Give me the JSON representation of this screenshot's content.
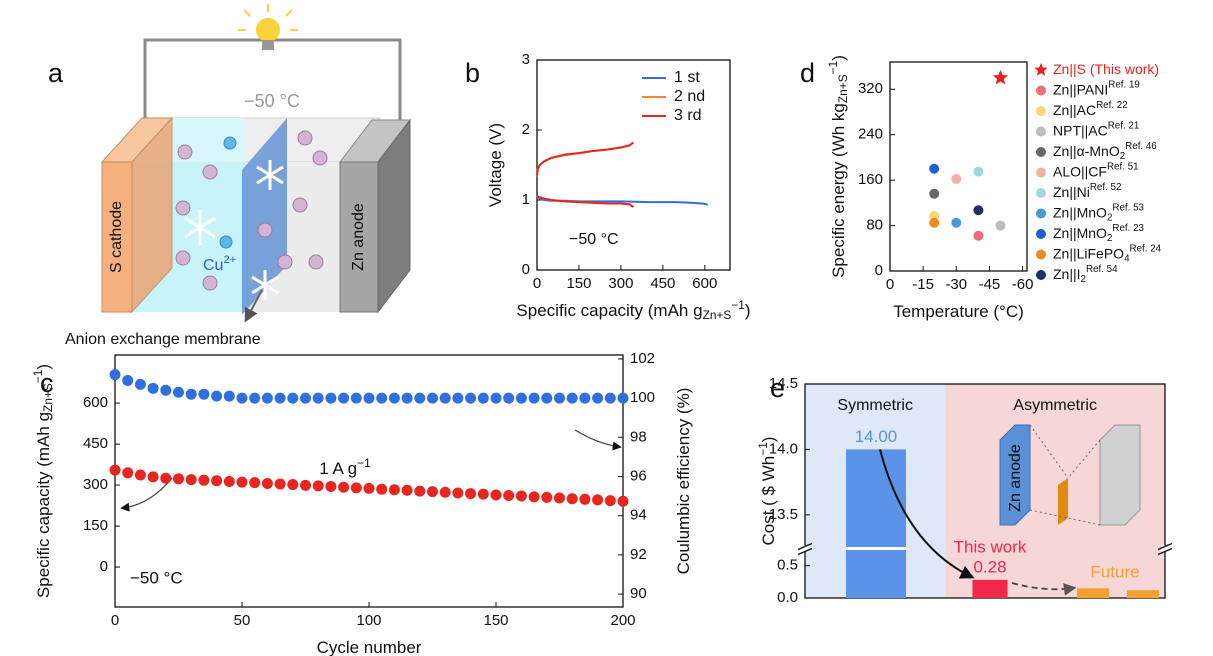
{
  "diagram": {
    "label": "a",
    "temperature": "−50 °C",
    "cathode": "S cathode",
    "anode": "Zn anode",
    "ion": [
      {
        "text": "Cu"
      },
      {
        "text": "2+",
        "pos": "sup"
      }
    ],
    "membrane": "Anion exchange membrane"
  },
  "chart_data": [
    {
      "panel_label": "b",
      "type": "line",
      "xlabel": [
        {
          "text": "Specific capacity (mAh g"
        },
        {
          "text": "Zn+S",
          "pos": "sub"
        },
        {
          "text": "−1",
          "pos": "sup"
        },
        {
          "text": ")"
        }
      ],
      "ylabel": [
        {
          "text": "Voltage (V)"
        }
      ],
      "annotation": "−50 °C",
      "xlim": [
        0,
        690
      ],
      "xticks": [
        0,
        150,
        300,
        450,
        600
      ],
      "ylim": [
        0,
        3
      ],
      "yticks": [
        0,
        1,
        2,
        3
      ],
      "legend": "upper right",
      "series": [
        {
          "name": "1 st",
          "color": "#2f6fdf",
          "x": [
            0,
            10,
            25,
            50,
            100,
            150,
            200,
            300,
            400,
            500,
            550,
            590,
            605,
            610
          ],
          "values": [
            1.06,
            1.02,
            1.0,
            0.99,
            0.99,
            0.98,
            0.98,
            0.98,
            0.97,
            0.97,
            0.96,
            0.95,
            0.94,
            0.93
          ]
        },
        {
          "name": "2 nd",
          "color": "#f28a2c",
          "x": [
            0,
            3,
            10,
            25,
            50,
            100,
            150,
            200,
            250,
            300,
            330,
            340,
            null,
            0,
            25,
            50,
            100,
            150,
            200,
            250,
            300,
            330,
            340
          ],
          "values": [
            1.34,
            1.44,
            1.5,
            1.55,
            1.6,
            1.64,
            1.67,
            1.7,
            1.72,
            1.75,
            1.78,
            1.81,
            null,
            1.05,
            1.02,
            1.0,
            0.98,
            0.97,
            0.96,
            0.95,
            0.95,
            0.94,
            0.91
          ]
        },
        {
          "name": "3 rd",
          "color": "#e8251f",
          "x": [
            0,
            3,
            10,
            25,
            50,
            100,
            150,
            200,
            250,
            300,
            330,
            345,
            null,
            0,
            25,
            50,
            100,
            150,
            200,
            250,
            300,
            330,
            345
          ],
          "values": [
            1.35,
            1.45,
            1.5,
            1.55,
            1.6,
            1.65,
            1.67,
            1.7,
            1.72,
            1.75,
            1.78,
            1.82,
            null,
            1.05,
            1.02,
            1.0,
            0.98,
            0.97,
            0.96,
            0.95,
            0.95,
            0.94,
            0.9
          ]
        }
      ]
    },
    {
      "panel_label": "c",
      "type": "scatter",
      "xlabel": [
        {
          "text": "Cycle number"
        }
      ],
      "ylabel": [
        {
          "text": "Specific capacity (mAh g"
        },
        {
          "text": "Zn+S",
          "pos": "sub"
        },
        {
          "text": "−1",
          "pos": "sup"
        },
        {
          "text": ")"
        }
      ],
      "y2label": [
        {
          "text": "Coulumbic efficiency (%)"
        }
      ],
      "rate": [
        {
          "text": "1 A g"
        },
        {
          "text": "−1",
          "pos": "sup"
        }
      ],
      "annotation": "−50 °C",
      "xlim": [
        0,
        200
      ],
      "xticks": [
        0,
        50,
        100,
        150,
        200
      ],
      "ylim": [
        -146,
        776
      ],
      "yticks": [
        0,
        150,
        300,
        450,
        600
      ],
      "y2lim": [
        89.34,
        102.2
      ],
      "y2ticks": [
        90,
        92,
        94,
        96,
        98,
        100,
        102
      ],
      "x": [
        0,
        5,
        10,
        15,
        20,
        25,
        30,
        35,
        40,
        45,
        50,
        55,
        60,
        65,
        70,
        75,
        80,
        85,
        90,
        95,
        100,
        105,
        110,
        115,
        120,
        125,
        130,
        135,
        140,
        145,
        150,
        155,
        160,
        165,
        170,
        175,
        180,
        185,
        190,
        195,
        200
      ],
      "series": [
        {
          "color": "#e8251f",
          "values": [
            355,
            345,
            337,
            330,
            325,
            323,
            320,
            318,
            316,
            313,
            311,
            309,
            306,
            304,
            302,
            299,
            297,
            295,
            292,
            290,
            288,
            285,
            283,
            281,
            278,
            276,
            274,
            271,
            269,
            267,
            264,
            262,
            260,
            257,
            255,
            253,
            250,
            248,
            246,
            243,
            241
          ]
        },
        {
          "color": "#2f6fdf",
          "axis": "y2",
          "values": [
            101.2,
            100.9,
            100.7,
            100.5,
            100.4,
            100.3,
            100.2,
            100.2,
            100.1,
            100.1,
            100,
            100,
            100,
            100,
            100,
            100,
            100,
            100,
            100,
            100,
            100,
            100,
            100,
            100,
            100,
            100,
            100,
            100,
            100,
            100,
            100,
            100,
            100,
            100,
            100,
            100,
            100,
            100,
            100,
            100,
            100
          ]
        }
      ]
    },
    {
      "panel_label": "d",
      "type": "scatter",
      "xlabel": [
        {
          "text": "Temperature (°C)"
        }
      ],
      "ylabel": [
        {
          "text": "Specific energy (Wh kg"
        },
        {
          "text": "Zn+S",
          "pos": "sub"
        },
        {
          "text": "−1",
          "pos": "sup"
        },
        {
          "text": ")"
        }
      ],
      "xlim": [
        0,
        -62
      ],
      "xticks": [
        0,
        -15,
        -30,
        -45,
        -60
      ],
      "ylim": [
        0,
        368
      ],
      "yticks": [
        0,
        80,
        160,
        240,
        320
      ],
      "legend": "right",
      "series": [
        {
          "name": [
            {
              "text": "Zn||S (This work)"
            }
          ],
          "color": "#e8221f",
          "text_color": "#e8221f",
          "marker": "star",
          "x": [
            -50
          ],
          "values": [
            340
          ]
        },
        {
          "name": [
            {
              "text": "Zn||PANI"
            },
            {
              "text": "Ref. 19",
              "pos": "sup"
            }
          ],
          "color": "#f26b7a",
          "marker": "circle",
          "x": [
            -40
          ],
          "values": [
            62
          ]
        },
        {
          "name": [
            {
              "text": "Zn||AC"
            },
            {
              "text": "Ref. 22",
              "pos": "sup"
            }
          ],
          "color": "#f7d77a",
          "marker": "circle",
          "x": [
            -20
          ],
          "values": [
            97
          ]
        },
        {
          "name": [
            {
              "text": "NPT||AC"
            },
            {
              "text": "Ref. 21",
              "pos": "sup"
            }
          ],
          "color": "#bdbdbd",
          "marker": "circle",
          "x": [
            -50
          ],
          "values": [
            80
          ]
        },
        {
          "name": [
            {
              "text": "Zn||α-MnO"
            },
            {
              "text": "2",
              "pos": "sub"
            },
            {
              "text": "Ref. 46",
              "pos": "sup"
            }
          ],
          "color": "#666666",
          "marker": "circle",
          "x": [
            -20
          ],
          "values": [
            136
          ]
        },
        {
          "name": [
            {
              "text": "ALO||CF"
            },
            {
              "text": "Ref. 51",
              "pos": "sup"
            }
          ],
          "color": "#f5b0a0",
          "marker": "circle",
          "x": [
            -30
          ],
          "values": [
            162
          ]
        },
        {
          "name": [
            {
              "text": "Zn||Ni"
            },
            {
              "text": "Ref. 52",
              "pos": "sup"
            }
          ],
          "color": "#9dd9e2",
          "marker": "circle",
          "x": [
            -40
          ],
          "values": [
            175
          ]
        },
        {
          "name": [
            {
              "text": "Zn||MnO"
            },
            {
              "text": "2",
              "pos": "sub"
            },
            {
              "text": "Ref. 53",
              "pos": "sup"
            }
          ],
          "color": "#4a9ad8",
          "marker": "circle",
          "x": [
            -30
          ],
          "values": [
            85
          ]
        },
        {
          "name": [
            {
              "text": "Zn||MnO"
            },
            {
              "text": "2",
              "pos": "sub"
            },
            {
              "text": "Ref. 23",
              "pos": "sup"
            }
          ],
          "color": "#1f5fd6",
          "marker": "circle",
          "x": [
            -20
          ],
          "values": [
            180
          ]
        },
        {
          "name": [
            {
              "text": "Zn||LiFePO"
            },
            {
              "text": "4",
              "pos": "sub"
            },
            {
              "text": "Ref. 24",
              "pos": "sup"
            }
          ],
          "color": "#f08a1c",
          "marker": "circle",
          "x": [
            -20
          ],
          "values": [
            85
          ]
        },
        {
          "name": [
            {
              "text": "Zn||I"
            },
            {
              "text": "2",
              "pos": "sub"
            },
            {
              "text": "Ref. 54",
              "pos": "sup"
            }
          ],
          "color": "#1e2f66",
          "marker": "circle",
          "x": [
            -40
          ],
          "values": [
            107
          ]
        }
      ]
    },
    {
      "panel_label": "e",
      "type": "bar",
      "ylabel": [
        {
          "text": "Cost ( $ Wh"
        },
        {
          "text": "−1",
          "pos": "sup"
        },
        {
          "text": ")"
        }
      ],
      "regions": [
        {
          "text": "Symmetric",
          "color": "#dfe8f8"
        },
        {
          "text": "Asymmetric",
          "color": "#f6d6d6"
        }
      ],
      "this_work": "This work",
      "future": "Future",
      "inset_label": "Zn anode",
      "ylim": [
        0,
        14.5
      ],
      "ybreak": [
        0.65,
        13.3
      ],
      "yticks": [
        {
          "value": 0,
          "label": "0.0"
        },
        0.5,
        13.5,
        {
          "value": 14,
          "label": "14.0"
        },
        14.5
      ],
      "categories": [
        null,
        null,
        null,
        null
      ],
      "values": [
        14,
        0.28,
        0.15,
        0.12
      ],
      "value_labels": [
        "14.00",
        "0.28",
        null,
        null
      ],
      "colors": [
        "#5b93e8",
        "#f0284a",
        "#f5a030",
        "#f5a030"
      ]
    }
  ]
}
